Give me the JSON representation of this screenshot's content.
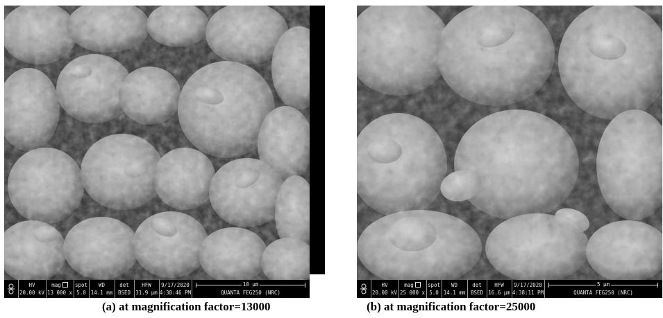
{
  "panels": [
    {
      "caption": "(a) at magnification factor=13000",
      "databar": {
        "hv_header": "HV",
        "hv_value": "20.00 kV",
        "mag_header": "mag",
        "mag_value": "13 000 x",
        "spot_header": "spot",
        "spot_value": "5.0",
        "wd_header": "WD",
        "wd_value": "14.1 mm",
        "det_header": "det",
        "det_value": "BSED",
        "hfw_header": "HFW",
        "hfw_value": "31.9 µm",
        "date": "9/17/2020",
        "time": "4:38:46 PM",
        "scale_label": "10 µm",
        "instrument": "QUANTA FEG250 (NRC)"
      }
    },
    {
      "caption": "(b) at magnification factor=25000",
      "databar": {
        "hv_header": "HV",
        "hv_value": "20.00 kV",
        "mag_header": "mag",
        "mag_value": "25 000 x",
        "spot_header": "spot",
        "spot_value": "5.0",
        "wd_header": "WD",
        "wd_value": "14.1 mm",
        "det_header": "det",
        "det_value": "BSED",
        "hfw_header": "HFW",
        "hfw_value": "16.6 µm",
        "date": "9/17/2020",
        "time": "4:38:11 PM",
        "scale_label": "5 µm",
        "instrument": "QUANTA FEG250 (NRC)"
      }
    }
  ],
  "colors": {
    "databar_bg": "#000000",
    "databar_text": "#e8e8e8",
    "micrograph_base": "#6b6b6b"
  }
}
